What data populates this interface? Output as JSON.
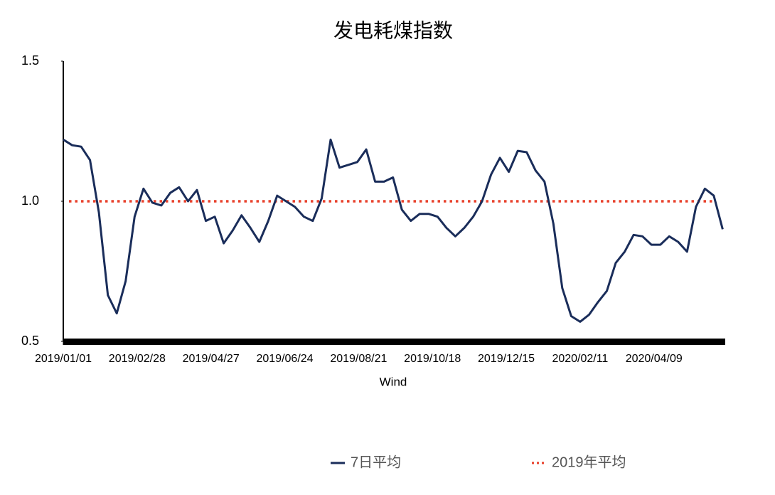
{
  "chart_data": {
    "type": "line",
    "title": "发电耗煤指数",
    "x_label": "Wind",
    "x": [
      "2019/01/01",
      "2019/01/08",
      "2019/01/15",
      "2019/01/22",
      "2019/01/29",
      "2019/02/05",
      "2019/02/12",
      "2019/02/19",
      "2019/02/26",
      "2019/03/05",
      "2019/03/12",
      "2019/03/19",
      "2019/03/26",
      "2019/04/02",
      "2019/04/09",
      "2019/04/16",
      "2019/04/23",
      "2019/04/30",
      "2019/05/07",
      "2019/05/14",
      "2019/05/21",
      "2019/05/28",
      "2019/06/04",
      "2019/06/11",
      "2019/06/18",
      "2019/06/25",
      "2019/07/02",
      "2019/07/09",
      "2019/07/16",
      "2019/07/23",
      "2019/07/30",
      "2019/08/06",
      "2019/08/13",
      "2019/08/20",
      "2019/08/27",
      "2019/09/03",
      "2019/09/10",
      "2019/09/17",
      "2019/09/24",
      "2019/10/01",
      "2019/10/08",
      "2019/10/15",
      "2019/10/22",
      "2019/10/29",
      "2019/11/05",
      "2019/11/12",
      "2019/11/19",
      "2019/11/26",
      "2019/12/03",
      "2019/12/10",
      "2019/12/17",
      "2019/12/24",
      "2019/12/31",
      "2020/01/07",
      "2020/01/14",
      "2020/01/21",
      "2020/01/28",
      "2020/02/04",
      "2020/02/11",
      "2020/02/18",
      "2020/02/25",
      "2020/03/03",
      "2020/03/10",
      "2020/03/17",
      "2020/03/24",
      "2020/03/31",
      "2020/04/07",
      "2020/04/14",
      "2020/04/21",
      "2020/04/28",
      "2020/05/05",
      "2020/05/12",
      "2020/05/19",
      "2020/05/26",
      "2020/06/02"
    ],
    "series": [
      {
        "name": "7日平均",
        "color": "#1a2d5a",
        "values": [
          1.22,
          1.2,
          1.195,
          1.147,
          0.96,
          0.665,
          0.6,
          0.715,
          0.945,
          1.045,
          0.995,
          0.985,
          1.03,
          1.05,
          1.0,
          1.04,
          0.93,
          0.945,
          0.85,
          0.895,
          0.95,
          0.905,
          0.855,
          0.93,
          1.02,
          1.0,
          0.98,
          0.945,
          0.93,
          1.01,
          1.22,
          1.12,
          1.13,
          1.14,
          1.185,
          1.07,
          1.07,
          1.085,
          0.97,
          0.93,
          0.955,
          0.955,
          0.945,
          0.905,
          0.875,
          0.905,
          0.945,
          1.0,
          1.095,
          1.155,
          1.105,
          1.18,
          1.175,
          1.11,
          1.07,
          0.92,
          0.69,
          0.59,
          0.57,
          0.595,
          0.64,
          0.68,
          0.78,
          0.82,
          0.88,
          0.875,
          0.845,
          0.845,
          0.875,
          0.855,
          0.82,
          0.98,
          1.045,
          1.02,
          0.9
        ]
      }
    ],
    "reference_line": {
      "name": "2019年平均",
      "color": "#e8412c",
      "value": 1
    },
    "xlim": [
      "2019/01/01",
      "2020/06/04"
    ],
    "xticks": [
      "2019/01/01",
      "2019/02/28",
      "2019/04/27",
      "2019/06/24",
      "2019/08/21",
      "2019/10/18",
      "2019/12/15",
      "2020/02/11",
      "2020/04/09"
    ],
    "ylim": [
      0.5,
      1.5
    ],
    "yticks": [
      0.5,
      {
        "value": 1,
        "label": "1.0"
      },
      1.5
    ],
    "grid": false,
    "legend": "bottom"
  }
}
